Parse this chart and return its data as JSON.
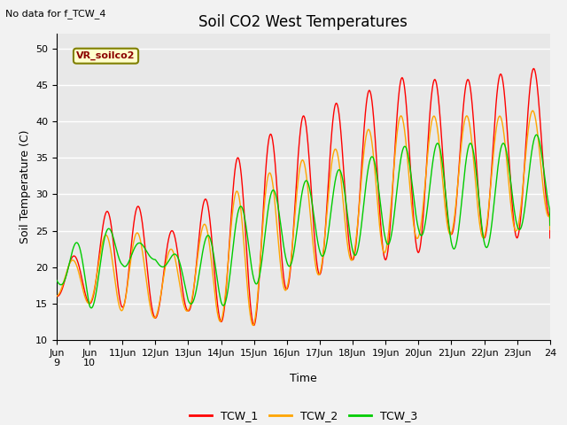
{
  "title": "Soil CO2 West Temperatures",
  "ylabel": "Soil Temperature (C)",
  "xlabel": "Time",
  "annotation": "No data for f_TCW_4",
  "legend_label": "VR_soilco2",
  "ylim": [
    10,
    52
  ],
  "xlim": [
    0,
    15
  ],
  "series_colors": {
    "TCW_1": "#ff0000",
    "TCW_2": "#ffa500",
    "TCW_3": "#00cc00"
  },
  "background_color": "#e8e8e8",
  "fig_color": "#f2f2f2",
  "grid_color": "#ffffff",
  "title_fontsize": 12,
  "axis_fontsize": 9,
  "tick_fontsize": 8,
  "legend_fontsize": 9,
  "tcw1_mins": [
    16,
    15,
    14.5,
    13,
    14,
    12.5,
    12,
    17,
    19,
    21,
    21,
    22,
    24.5,
    24,
    24,
    27
  ],
  "tcw1_maxs": [
    20,
    23,
    32,
    24.5,
    25.5,
    33,
    37,
    39.5,
    42,
    43,
    45.5,
    46.5,
    45,
    46.5,
    46.5,
    48
  ],
  "tcw2_mins": [
    16,
    15,
    14,
    13,
    14,
    12.5,
    12,
    17,
    19,
    21,
    22,
    24,
    24.5,
    24,
    25,
    27
  ],
  "tcw2_maxs": [
    20,
    22,
    27,
    22,
    23,
    29,
    32,
    34,
    35.5,
    37,
    41,
    40.5,
    41,
    40.5,
    41,
    42
  ],
  "tcw3_mins": [
    18,
    14,
    20,
    21,
    15,
    14.5,
    17.5,
    20,
    21.5,
    21.5,
    23,
    24.5,
    22.5,
    22.5,
    25,
    27
  ],
  "tcw3_maxs": [
    21,
    25,
    25.5,
    21.5,
    22,
    26,
    30,
    31,
    32.5,
    34,
    36,
    37,
    37,
    37,
    37,
    39
  ],
  "xtick_positions": [
    0,
    1,
    2,
    3,
    4,
    5,
    6,
    7,
    8,
    9,
    10,
    11,
    12,
    13,
    14,
    15
  ],
  "xtick_labels": [
    "Jun\n9",
    "Jun\n10",
    "11Jun",
    "12Jun",
    "13Jun",
    "14Jun",
    "15Jun",
    "16Jun",
    "17Jun",
    "18Jun",
    "19Jun",
    "20Jun",
    "21Jun",
    "22Jun",
    "23Jun",
    "24"
  ],
  "ytick_positions": [
    10,
    15,
    20,
    25,
    30,
    35,
    40,
    45,
    50
  ]
}
